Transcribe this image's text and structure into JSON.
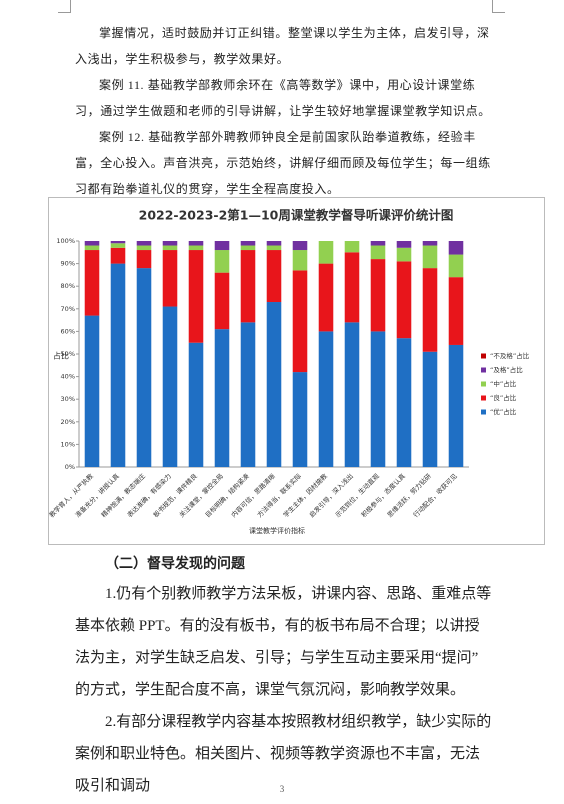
{
  "paragraphs_top": [
    "掌握情况，适时鼓励并订正纠错。整堂课以学生为主体，启发引导，深入浅出，学生积极参与，教学效果好。",
    "案例 11. 基础教学部教师余环在《高等数学》课中，用心设计课堂练习，通过学生做题和老师的引导讲解，让学生较好地掌握课堂教学知识点。",
    "案例 12. 基础教学部外聘教师钟良全是前国家队跆拳道教练，经验丰富，全心投入。声音洪亮，示范始终，讲解仔细而顾及每位学生；每一组练习都有跆拳道礼仪的贯穿，学生全程高度投入。"
  ],
  "chart_data": {
    "type": "stacked_bar",
    "title": "2022-2023-2第1—10周课堂教学督导听课评价统计图",
    "x_label": "课堂教学评价指标",
    "y_label": "占比",
    "categories": [
      "教学育人，从严执教",
      "准备充分，讲授认真",
      "精神饱满，教态端庄",
      "表达准确，有感染力",
      "板书规范，课件精良",
      "关注课堂，掌控全局",
      "目标明确，结构紧凑",
      "内容可信，思路清晰",
      "方法得当，联系实际",
      "学生主体，因材施教",
      "启发引导，深入浅出",
      "示范到位，生动直观",
      "积极参与，态度认真",
      "思维活跃，努力钻研",
      "行动配合，收获可见"
    ],
    "series": [
      {
        "name": "“优”占比",
        "color": "#1f6fc4",
        "values": [
          67,
          90,
          88,
          71,
          55,
          61,
          64,
          73,
          42,
          60,
          64,
          60,
          57,
          51,
          54
        ]
      },
      {
        "name": "“良”占比",
        "color": "#e8151b",
        "values": [
          29,
          7,
          8,
          25,
          41,
          25,
          32,
          23,
          45,
          30,
          31,
          32,
          34,
          37,
          30
        ]
      },
      {
        "name": "“中”占比",
        "color": "#92d050",
        "values": [
          2,
          2,
          2,
          2,
          2,
          10,
          2,
          2,
          9,
          10,
          5,
          6,
          6,
          10,
          10
        ]
      },
      {
        "name": "“及格”占比",
        "color": "#7030a0",
        "values": [
          2,
          1,
          2,
          2,
          2,
          4,
          2,
          2,
          4,
          0,
          0,
          2,
          3,
          2,
          6
        ]
      },
      {
        "name": "“不及格”占比",
        "color": "#c00000",
        "values": [
          0,
          0,
          0,
          0,
          0,
          0,
          0,
          0,
          0,
          0,
          0,
          0,
          0,
          0,
          0
        ]
      }
    ],
    "ylim": [
      0,
      100
    ],
    "yticks": [
      {
        "value": 0,
        "label": "0%"
      },
      {
        "value": 10,
        "label": "10%"
      },
      {
        "value": 20,
        "label": "20%"
      },
      {
        "value": 30,
        "label": "30%"
      },
      {
        "value": 40,
        "label": "40%"
      },
      {
        "value": 50,
        "label": "50%"
      },
      {
        "value": 60,
        "label": "60%"
      },
      {
        "value": 70,
        "label": "70%"
      },
      {
        "value": 80,
        "label": "80%"
      },
      {
        "value": 90,
        "label": "90%"
      },
      {
        "value": 100,
        "label": "100%"
      }
    ],
    "grid": false,
    "legend": "right"
  },
  "section_heading": "（二）督导发现的问题",
  "paragraphs_bottom": [
    "1.仍有个别教师教学方法呆板，讲课内容、思路、重难点等基本依赖 PPT。有的没有板书，有的板书布局不合理；以讲授法为主，对学生缺乏启发、引导；与学生互动主要采用“提问”的方式，学生配合度不高，课堂气氛沉闷，影响教学效果。",
    "2.有部分课程教学内容基本按照教材组织教学，缺少实际的案例和职业特色。相关图片、视频等教学资源也不丰富，无法吸引和调动"
  ],
  "page_number": "3"
}
